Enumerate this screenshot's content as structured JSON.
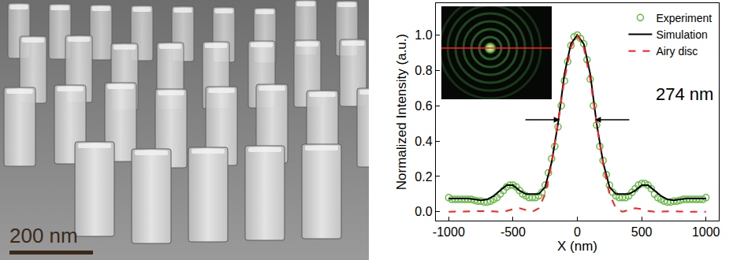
{
  "chart_data": {
    "type": "scatter",
    "x_label": "X (nm)",
    "y_label": "Normalized Intensity (a.u.)",
    "xlim": [
      -1100,
      1100
    ],
    "ylim": [
      -0.05,
      1.18
    ],
    "xticks": [
      -1000,
      -500,
      0,
      500,
      1000
    ],
    "yticks": [
      {
        "value": 0,
        "label": "0.0"
      },
      0.2,
      0.4,
      0.6,
      0.8,
      {
        "value": 1,
        "label": "1.0"
      }
    ],
    "grid": false,
    "legend": "upper right",
    "series": [
      {
        "name": "Experiment",
        "type": "scatter",
        "marker": "circle-open",
        "color": "#66bb44",
        "x": [
          -1000,
          -975,
          -950,
          -925,
          -900,
          -875,
          -850,
          -825,
          -800,
          -775,
          -750,
          -725,
          -700,
          -675,
          -650,
          -625,
          -600,
          -575,
          -550,
          -525,
          -500,
          -475,
          -450,
          -425,
          -400,
          -375,
          -350,
          -325,
          -300,
          -275,
          -250,
          -225,
          -200,
          -175,
          -150,
          -125,
          -100,
          -75,
          -50,
          -25,
          0,
          25,
          50,
          75,
          100,
          125,
          150,
          175,
          200,
          225,
          250,
          275,
          300,
          325,
          350,
          375,
          400,
          425,
          450,
          475,
          500,
          525,
          550,
          575,
          600,
          625,
          650,
          675,
          700,
          725,
          750,
          775,
          800,
          825,
          850,
          875,
          900,
          925,
          950,
          975,
          1000
        ],
        "values": [
          0.08,
          0.07,
          0.07,
          0.07,
          0.07,
          0.07,
          0.07,
          0.07,
          0.065,
          0.06,
          0.06,
          0.055,
          0.055,
          0.06,
          0.07,
          0.08,
          0.1,
          0.12,
          0.14,
          0.15,
          0.15,
          0.14,
          0.12,
          0.1,
          0.09,
          0.08,
          0.08,
          0.08,
          0.09,
          0.11,
          0.15,
          0.22,
          0.3,
          0.37,
          0.48,
          0.6,
          0.74,
          0.85,
          0.94,
          0.99,
          1.0,
          0.98,
          0.95,
          0.86,
          0.75,
          0.6,
          0.49,
          0.37,
          0.29,
          0.21,
          0.15,
          0.11,
          0.09,
          0.08,
          0.08,
          0.08,
          0.09,
          0.11,
          0.13,
          0.15,
          0.16,
          0.16,
          0.15,
          0.13,
          0.1,
          0.08,
          0.07,
          0.06,
          0.055,
          0.055,
          0.06,
          0.06,
          0.065,
          0.07,
          0.07,
          0.07,
          0.07,
          0.07,
          0.07,
          0.07,
          0.08
        ]
      },
      {
        "name": "Simulation",
        "type": "line",
        "line_style": "solid",
        "color": "#000000",
        "x": [
          -1000,
          -950,
          -900,
          -850,
          -800,
          -750,
          -700,
          -650,
          -600,
          -550,
          -500,
          -450,
          -400,
          -350,
          -300,
          -250,
          -200,
          -150,
          -100,
          -50,
          0,
          50,
          100,
          150,
          200,
          250,
          300,
          350,
          400,
          450,
          500,
          550,
          600,
          650,
          700,
          750,
          800,
          850,
          900,
          950,
          1000
        ],
        "values": [
          0.075,
          0.075,
          0.075,
          0.075,
          0.07,
          0.065,
          0.07,
          0.09,
          0.12,
          0.15,
          0.15,
          0.12,
          0.1,
          0.1,
          0.1,
          0.14,
          0.28,
          0.5,
          0.78,
          0.95,
          1.0,
          0.95,
          0.78,
          0.5,
          0.28,
          0.14,
          0.1,
          0.1,
          0.1,
          0.12,
          0.15,
          0.15,
          0.12,
          0.09,
          0.07,
          0.065,
          0.07,
          0.075,
          0.075,
          0.075,
          0.075
        ]
      },
      {
        "name": "Airy disc",
        "type": "line",
        "line_style": "dashed",
        "color": "#ff2020",
        "x": [
          -1000,
          -950,
          -900,
          -850,
          -800,
          -750,
          -700,
          -650,
          -600,
          -550,
          -500,
          -450,
          -400,
          -350,
          -300,
          -250,
          -200,
          -150,
          -100,
          -50,
          0,
          50,
          100,
          150,
          200,
          250,
          300,
          350,
          400,
          450,
          500,
          550,
          600,
          650,
          700,
          750,
          800,
          850,
          900,
          950,
          1000
        ],
        "values": [
          0.0,
          0.001,
          0.001,
          0.0,
          0.001,
          0.003,
          0.004,
          0.002,
          0.0,
          0.005,
          0.015,
          0.02,
          0.01,
          0.0,
          0.02,
          0.1,
          0.27,
          0.5,
          0.75,
          0.93,
          1.0,
          0.93,
          0.75,
          0.5,
          0.27,
          0.1,
          0.02,
          0.0,
          0.01,
          0.02,
          0.015,
          0.005,
          0.0,
          0.002,
          0.004,
          0.003,
          0.001,
          0.0,
          0.001,
          0.001,
          0.0
        ]
      }
    ],
    "fwhm": {
      "label": "274 nm",
      "x": [
        -137,
        137
      ],
      "y": 0.52
    }
  },
  "image": {
    "scale_bar": "200 nm"
  }
}
